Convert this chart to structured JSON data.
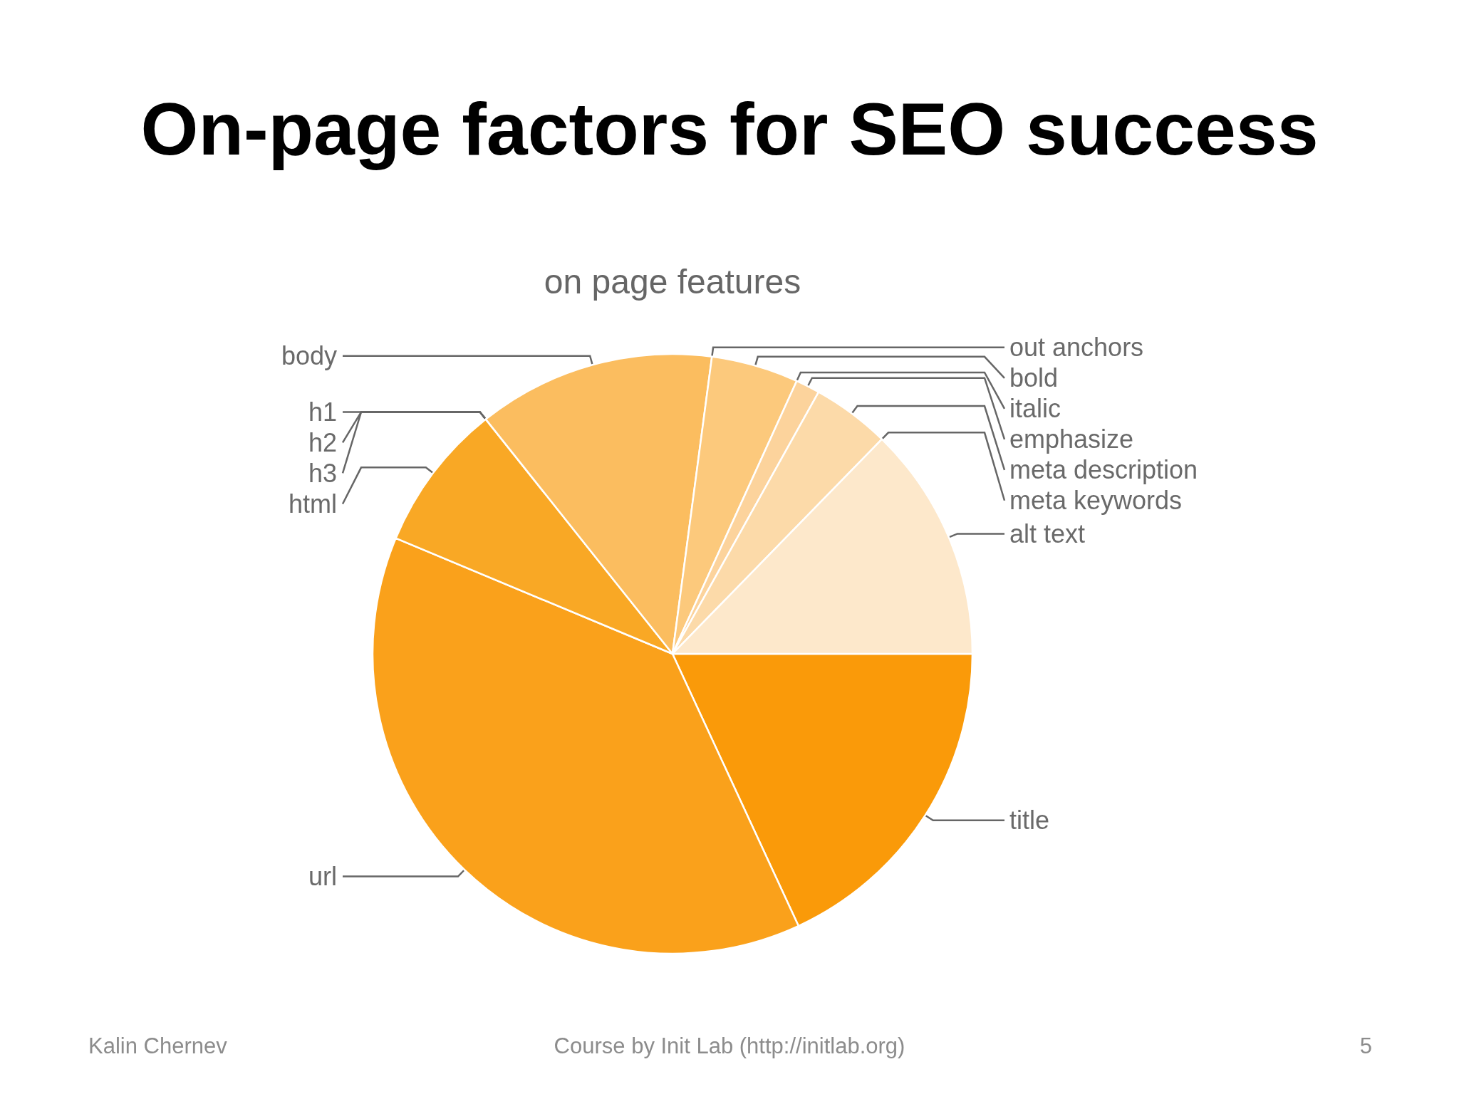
{
  "chart_data": {
    "type": "pie",
    "title": "On-page factors for SEO success",
    "subtitle": "on page features",
    "categories": [
      "title",
      "url",
      "html",
      "h3",
      "h2",
      "h1",
      "body",
      "out anchors",
      "bold",
      "italic",
      "emphasize",
      "meta description",
      "meta keywords",
      "alt text"
    ],
    "values": [
      18.1,
      38.2,
      8.0,
      0,
      0,
      0,
      12.8,
      0,
      4.7,
      0,
      1.3,
      4.2,
      0,
      12.7
    ],
    "colors": [
      "#fa9a09",
      "#faa11b",
      "#f9a825",
      "#f9ad33",
      "#fab23f",
      "#fab74b",
      "#fbbd5f",
      "#fbc46d",
      "#fcc97c",
      "#fccd88",
      "#fcd39c",
      "#fcdaa9",
      "#fde1b9",
      "#fde8cb"
    ],
    "annotations": [
      "Kalin Chernev",
      "Course by Init Lab (http://initlab.org)",
      "5"
    ]
  }
}
